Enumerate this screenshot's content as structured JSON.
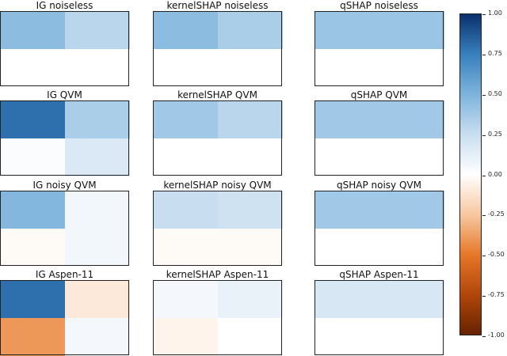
{
  "chart_data": {
    "type": "heatmap",
    "colormap": "RdBu",
    "vmin": -1.0,
    "vmax": 1.0,
    "panels": [
      {
        "title": "IG noiseless",
        "values": [
          [
            0.45,
            0.3
          ],
          [
            0.0,
            0.0
          ]
        ]
      },
      {
        "title": "kernelSHAP noiseless",
        "values": [
          [
            0.45,
            0.35
          ],
          [
            0.0,
            0.0
          ]
        ]
      },
      {
        "title": "qSHAP noiseless",
        "values": [
          [
            0.4,
            0.4
          ],
          [
            0.0,
            0.0
          ]
        ]
      },
      {
        "title": "IG QVM",
        "values": [
          [
            0.8,
            0.35
          ],
          [
            0.02,
            0.17
          ]
        ]
      },
      {
        "title": "kernelSHAP QVM",
        "values": [
          [
            0.38,
            0.3
          ],
          [
            0.0,
            0.0
          ]
        ]
      },
      {
        "title": "qSHAP QVM",
        "values": [
          [
            0.38,
            0.38
          ],
          [
            0.0,
            0.0
          ]
        ]
      },
      {
        "title": "IG noisy QVM",
        "values": [
          [
            0.48,
            0.06
          ],
          [
            -0.02,
            0.06
          ]
        ]
      },
      {
        "title": "kernelSHAP noisy QVM",
        "values": [
          [
            0.25,
            0.22
          ],
          [
            -0.02,
            -0.02
          ]
        ]
      },
      {
        "title": "qSHAP noisy QVM",
        "values": [
          [
            0.38,
            0.38
          ],
          [
            0.0,
            0.0
          ]
        ]
      },
      {
        "title": "IG Aspen-11",
        "values": [
          [
            0.8,
            -0.1
          ],
          [
            -0.4,
            0.05
          ]
        ]
      },
      {
        "title": "kernelSHAP Aspen-11",
        "values": [
          [
            0.05,
            0.1
          ],
          [
            -0.05,
            0.0
          ]
        ]
      },
      {
        "title": "qSHAP Aspen-11",
        "values": [
          [
            0.18,
            0.18
          ],
          [
            0.0,
            0.0
          ]
        ]
      }
    ],
    "colorbar_ticks": [
      {
        "value": 1.0,
        "label": "1.00"
      },
      {
        "value": 0.75,
        "label": "0.75"
      },
      {
        "value": 0.5,
        "label": "0.50"
      },
      {
        "value": 0.25,
        "label": "0.25"
      },
      {
        "value": 0.0,
        "label": "0.00"
      },
      {
        "value": -0.25,
        "label": "-0.25"
      },
      {
        "value": -0.5,
        "label": "-0.50"
      },
      {
        "value": -0.75,
        "label": "-0.75"
      },
      {
        "value": -1.0,
        "label": "-1.00"
      }
    ]
  }
}
